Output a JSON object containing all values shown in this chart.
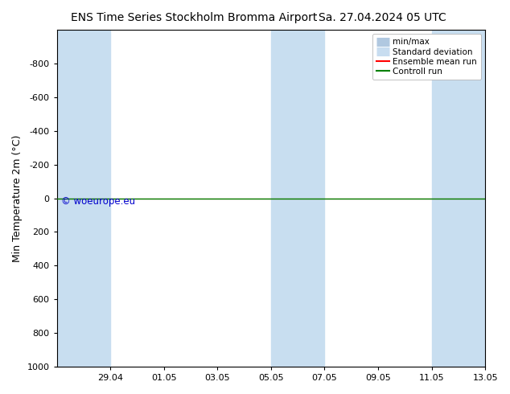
{
  "title_left": "ENS Time Series Stockholm Bromma Airport",
  "title_right": "Sa. 27.04.2024 05 UTC",
  "ylabel": "Min Temperature 2m (°C)",
  "ylim_top": -1000,
  "ylim_bottom": 1000,
  "yticks": [
    -800,
    -600,
    -400,
    -200,
    0,
    200,
    400,
    600,
    800,
    1000
  ],
  "xlim_start": 0,
  "xlim_end": 16,
  "xtick_positions": [
    2,
    4,
    6,
    8,
    10,
    12,
    14,
    16
  ],
  "xtick_labels": [
    "29.04",
    "01.05",
    "03.05",
    "05.05",
    "07.05",
    "09.05",
    "11.05",
    "13.05"
  ],
  "shaded_bands": [
    [
      0,
      1.5
    ],
    [
      1.5,
      2.5
    ],
    [
      8,
      9
    ],
    [
      9,
      10
    ],
    [
      14,
      15
    ],
    [
      15,
      16
    ]
  ],
  "shaded_colors": [
    "#c5dcf0",
    "#daeaf8",
    "#c5dcf0",
    "#daeaf8",
    "#c5dcf0",
    "#daeaf8"
  ],
  "control_run_y": 0,
  "ensemble_mean_y": 0,
  "control_run_color": "#008000",
  "ensemble_mean_color": "#ff0000",
  "watermark": "© woeurope.eu",
  "watermark_color": "#0000cc",
  "background_color": "#ffffff",
  "plot_bg_color": "#ffffff",
  "legend_items": [
    "min/max",
    "Standard deviation",
    "Ensemble mean run",
    "Controll run"
  ],
  "legend_minmax_color": "#b0c8e0",
  "legend_std_color": "#c8ddf0",
  "legend_ens_color": "#ff0000",
  "legend_ctrl_color": "#008000",
  "title_fontsize": 10,
  "ylabel_fontsize": 9,
  "tick_fontsize": 8,
  "legend_fontsize": 7.5
}
